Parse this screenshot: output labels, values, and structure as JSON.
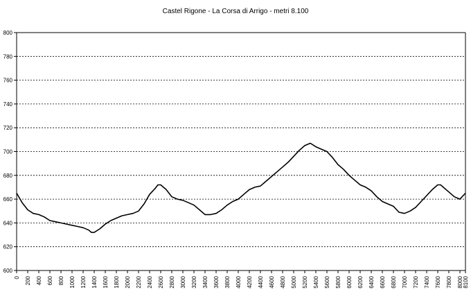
{
  "chart_data": {
    "type": "line",
    "title": "Castel Rigone - La Corsa di Arrigo - metri 8.100",
    "xlabel": "",
    "ylabel": "",
    "ylim": [
      600,
      800
    ],
    "yticks": [
      600,
      620,
      640,
      660,
      680,
      700,
      720,
      740,
      760,
      780,
      800
    ],
    "xlim": [
      0,
      8100
    ],
    "xticks": [
      0,
      200,
      400,
      600,
      800,
      1000,
      1200,
      1400,
      1600,
      1800,
      2000,
      2200,
      2400,
      2600,
      2800,
      3000,
      3200,
      3400,
      3600,
      3800,
      4000,
      4200,
      4400,
      4600,
      4800,
      5000,
      5200,
      5400,
      5600,
      5800,
      6000,
      6200,
      6400,
      6600,
      6800,
      7000,
      7200,
      7400,
      7600,
      7800,
      8000,
      8100
    ],
    "grid": "horizontal-dashed",
    "line_color": "#000000",
    "series": [
      {
        "x": [
          0,
          100,
          200,
          300,
          400,
          500,
          600,
          700,
          800,
          900,
          1000,
          1100,
          1200,
          1300,
          1350,
          1400,
          1500,
          1600,
          1700,
          1800,
          1900,
          2000,
          2100,
          2200,
          2300,
          2400,
          2500,
          2550,
          2600,
          2700,
          2800,
          2900,
          3000,
          3100,
          3200,
          3300,
          3400,
          3500,
          3600,
          3700,
          3800,
          3900,
          4000,
          4100,
          4200,
          4300,
          4400,
          4500,
          4600,
          4700,
          4800,
          4900,
          5000,
          5100,
          5200,
          5300,
          5400,
          5500,
          5600,
          5700,
          5800,
          5900,
          6000,
          6100,
          6200,
          6300,
          6400,
          6500,
          6600,
          6700,
          6800,
          6900,
          7000,
          7100,
          7200,
          7300,
          7400,
          7500,
          7600,
          7650,
          7700,
          7800,
          7900,
          8000,
          8100
        ],
        "y": [
          665,
          657,
          651,
          648,
          647,
          645,
          642,
          641,
          640,
          639,
          638,
          637,
          636,
          634,
          632,
          632,
          635,
          639,
          642,
          644,
          646,
          647,
          648,
          650,
          656,
          664,
          669,
          672,
          672,
          668,
          662,
          660,
          659,
          657,
          655,
          651,
          647,
          647,
          648,
          651,
          655,
          658,
          660,
          664,
          668,
          670,
          671,
          675,
          679,
          683,
          687,
          691,
          696,
          701,
          705,
          707,
          704,
          702,
          700,
          695,
          689,
          685,
          680,
          676,
          672,
          670,
          667,
          662,
          658,
          656,
          654,
          649,
          648,
          650,
          653,
          658,
          663,
          668,
          672,
          672,
          670,
          666,
          662,
          660,
          665
        ]
      }
    ]
  }
}
